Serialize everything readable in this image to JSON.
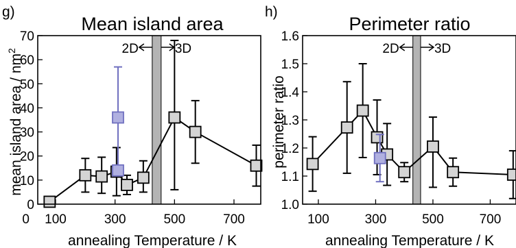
{
  "chart_data": [
    {
      "type": "line",
      "panel_label": "g)",
      "title": "Mean island area",
      "xlabel": "annealing Temperature / K",
      "ylabel": "mean island area / nm",
      "ylabel_superscript": "2",
      "xlim": [
        40,
        790
      ],
      "ylim": [
        0,
        70
      ],
      "xticks": [
        0,
        100,
        300,
        500,
        700
      ],
      "xtick_labels": [
        "0",
        "100",
        "300",
        "500",
        "700"
      ],
      "yticks": [
        0,
        10,
        20,
        30,
        40,
        50,
        60,
        70
      ],
      "ytick_labels": [
        "0",
        "10",
        "20",
        "30",
        "40",
        "50",
        "60",
        "70"
      ],
      "grid": false,
      "regime_band": {
        "x_from": 425,
        "x_to": 455
      },
      "regime_labels": [
        "2D",
        "3D"
      ],
      "series": [
        {
          "color": "#000000",
          "marker_face": "#d4d4d4",
          "x": [
            80,
            200,
            255,
            305,
            340,
            395,
            500,
            570,
            775
          ],
          "y": [
            1,
            12,
            11.5,
            13.5,
            8,
            11,
            36,
            30,
            16
          ],
          "err_low": [
            0,
            7,
            7,
            10,
            4,
            6,
            30,
            13,
            8.5
          ],
          "err_high": [
            0,
            7,
            8,
            10,
            4,
            7,
            32,
            13,
            8.5
          ]
        },
        {
          "color": "#7070c0",
          "marker_face": "#b0b0e0",
          "x": [
            310,
            310
          ],
          "y": [
            36,
            14
          ],
          "err_low": [
            21,
            0
          ],
          "err_high": [
            21,
            0
          ],
          "connect": false
        }
      ]
    },
    {
      "type": "line",
      "panel_label": "h)",
      "title": "Perimeter ratio",
      "xlabel": "annealing Temperature / K",
      "ylabel": "perimeter ratio",
      "xlim": [
        45,
        790
      ],
      "ylim": [
        1.0,
        1.6
      ],
      "xticks": [
        100,
        300,
        500,
        700
      ],
      "xtick_labels": [
        "100",
        "300",
        "500",
        "700"
      ],
      "yticks": [
        1.0,
        1.1,
        1.2,
        1.3,
        1.4,
        1.5,
        1.6
      ],
      "ytick_labels": [
        "1.0",
        "1.1",
        "1.2",
        "1.3",
        "1.4",
        "1.5",
        "1.6"
      ],
      "grid": false,
      "regime_band": {
        "x_from": 430,
        "x_to": 457
      },
      "regime_labels": [
        "2D",
        "3D"
      ],
      "series": [
        {
          "color": "#000000",
          "marker_face": "#d4d4d4",
          "x": [
            80,
            200,
            255,
            305,
            340,
            400,
            500,
            570,
            780
          ],
          "y": [
            1.143,
            1.273,
            1.333,
            1.238,
            1.177,
            1.114,
            1.205,
            1.114,
            1.105
          ],
          "err_low": [
            0.097,
            0.163,
            0.167,
            0.133,
            0.11,
            0.034,
            0.145,
            0.05,
            0.085
          ],
          "err_high": [
            0.097,
            0.163,
            0.167,
            0.133,
            0.11,
            0.034,
            0.105,
            0.05,
            0.085
          ]
        },
        {
          "color": "#7070c0",
          "marker_face": "#b0b0e0",
          "x": [
            315
          ],
          "y": [
            1.164
          ],
          "err_low": [
            0.084
          ],
          "err_high": [
            0.084
          ],
          "connect": false
        }
      ]
    }
  ]
}
